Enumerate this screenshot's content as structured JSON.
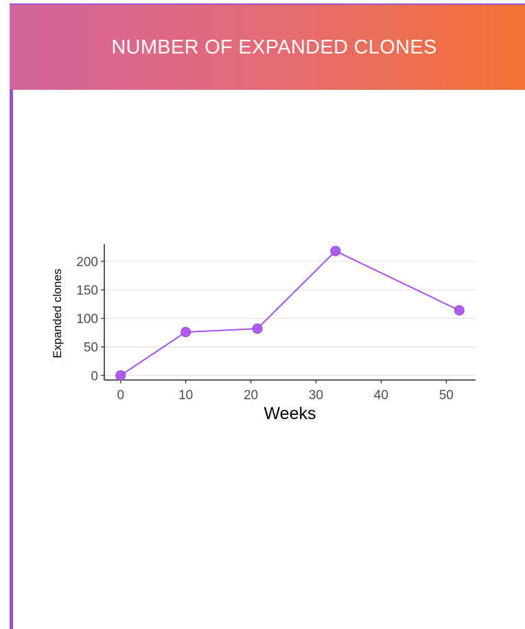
{
  "header": {
    "title": "NUMBER OF EXPANDED CLONES"
  },
  "colors": {
    "accent": "#9550d6",
    "series": "#a64ff0",
    "gradient_start": "#d3659f",
    "gradient_end": "#f27133"
  },
  "chart_data": {
    "type": "line",
    "title": "",
    "xlabel": "Weeks",
    "ylabel": "Expanded clones",
    "x": [
      0,
      10,
      21,
      33,
      52
    ],
    "series": [
      {
        "values": [
          0,
          76,
          82,
          218,
          114
        ]
      }
    ],
    "xlim": [
      -2.5,
      54.5
    ],
    "ylim": [
      -8,
      230
    ],
    "xticks": [
      0,
      10,
      20,
      30,
      40,
      50
    ],
    "yticks": [
      0,
      50,
      100,
      150,
      200
    ],
    "grid": "horizontal-major",
    "legend": "none"
  }
}
